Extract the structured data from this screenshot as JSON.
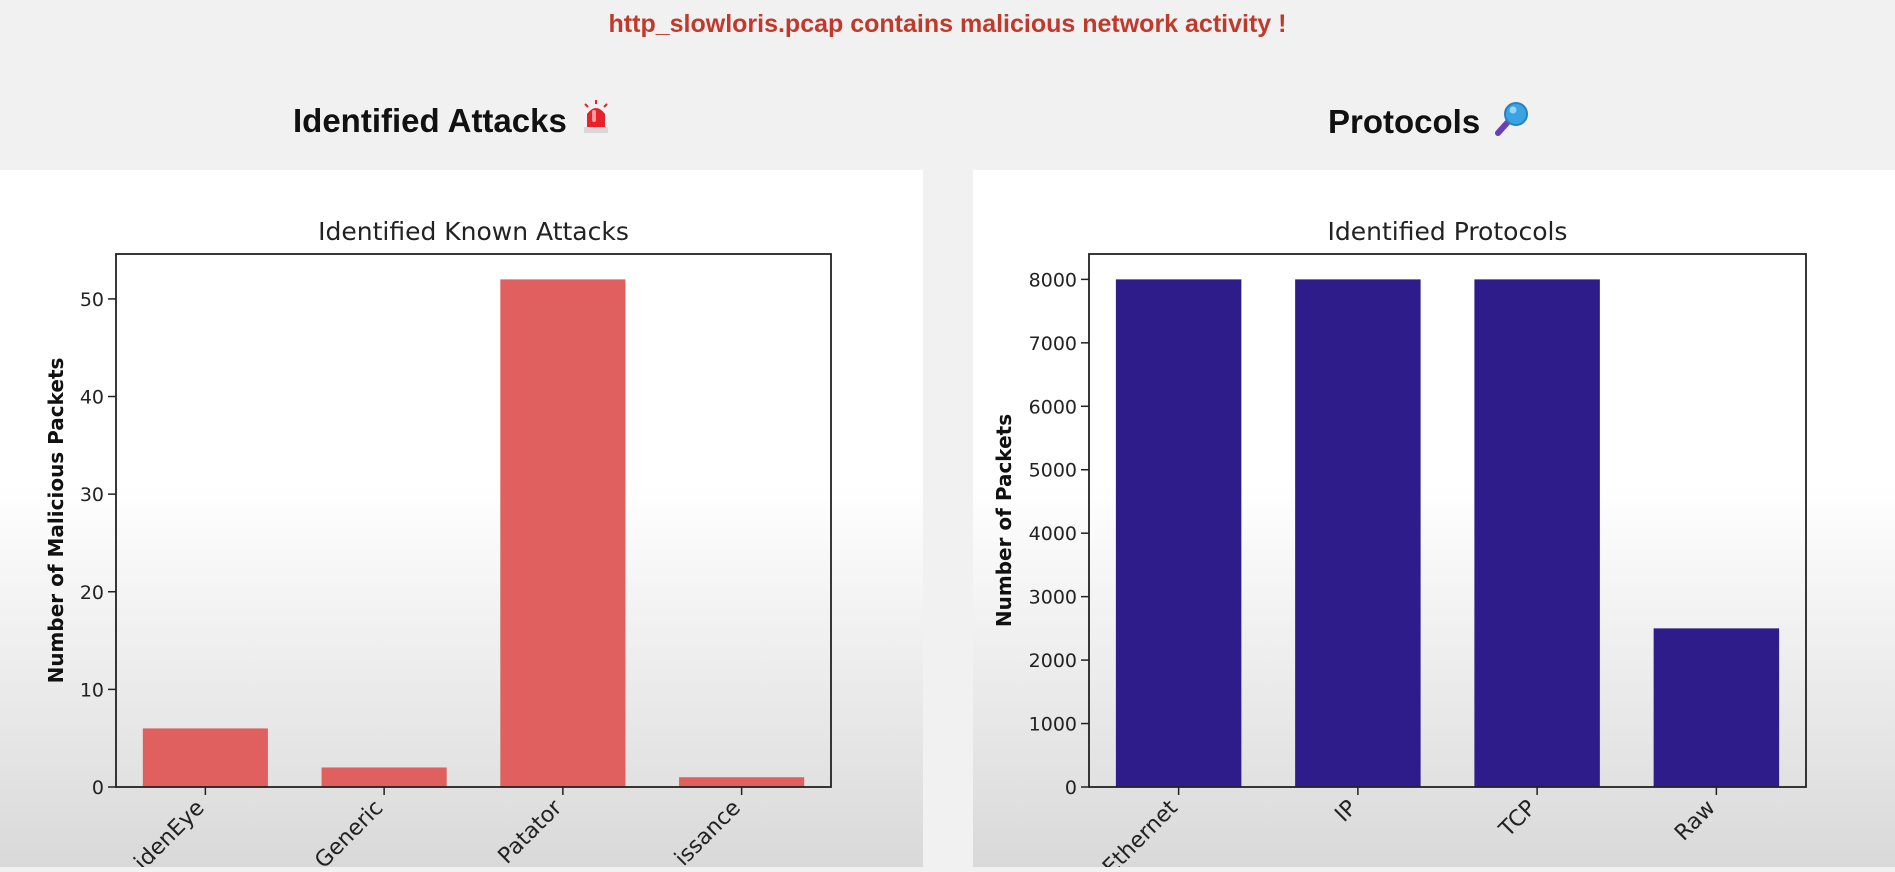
{
  "header": {
    "alert_text": "http_slowloris.pcap contains malicious network activity !"
  },
  "sections": {
    "attacks_title": "Identified Attacks",
    "attacks_icon": "siren-icon",
    "protocols_title": "Protocols",
    "protocols_icon": "magnifier-icon"
  },
  "colors": {
    "alert": "#c0392b",
    "attack_bar": "#e06060",
    "protocol_bar": "#2e1c8a"
  },
  "chart_data": [
    {
      "type": "bar",
      "title": "Identified Known Attacks",
      "xlabel": "",
      "ylabel": "Number of Malicious Packets",
      "categories": [
        "idenEye",
        "Generic",
        "Patator",
        "issance"
      ],
      "values": [
        6,
        2,
        52,
        1
      ],
      "ylim": [
        0,
        54.6
      ],
      "yticks": [
        0,
        10,
        20,
        30,
        40,
        50
      ],
      "grid": false,
      "legend": "none"
    },
    {
      "type": "bar",
      "title": "Identified Protocols",
      "xlabel": "",
      "ylabel": "Number of Packets",
      "categories": [
        "Ethernet",
        "IP",
        "TCP",
        "Raw"
      ],
      "values": [
        8000,
        8000,
        8000,
        2500
      ],
      "ylim": [
        0,
        8400
      ],
      "yticks": [
        0,
        1000,
        2000,
        3000,
        4000,
        5000,
        6000,
        7000,
        8000
      ],
      "grid": false,
      "legend": "none"
    }
  ]
}
